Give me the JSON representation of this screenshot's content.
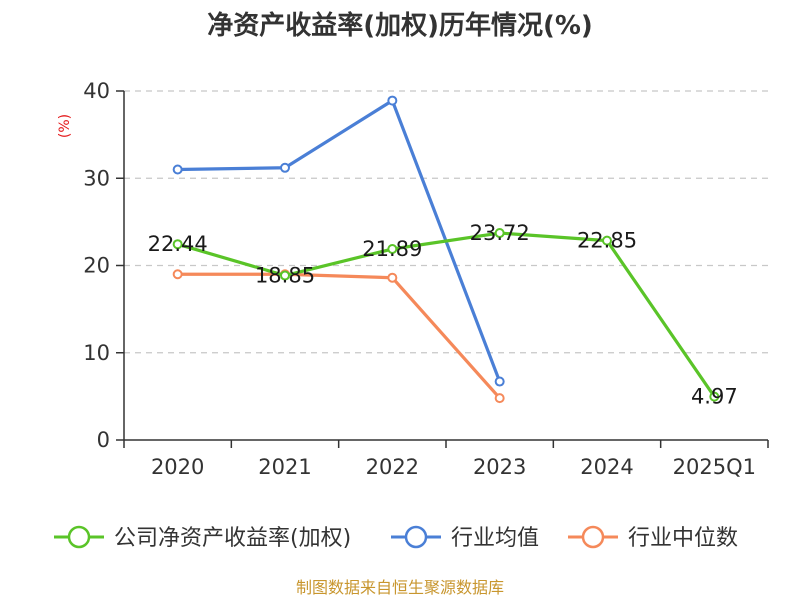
{
  "chart_data": {
    "type": "line",
    "title": "净资产收益率(加权)历年情况(%)",
    "ylabel": "(%)",
    "xlabel": "",
    "categories": [
      "2020",
      "2021",
      "2022",
      "2023",
      "2024",
      "2025Q1"
    ],
    "ylim": [
      0,
      40
    ],
    "yticks": [
      0,
      10,
      20,
      30,
      40
    ],
    "grid": true,
    "legend_position": "bottom",
    "series": [
      {
        "name": "公司净资产收益率(加权)",
        "color": "#5ac428",
        "values": [
          22.44,
          18.85,
          21.89,
          23.72,
          22.85,
          4.97
        ],
        "labels": [
          "22.44",
          "18.85",
          "21.89",
          "23.72",
          "22.85",
          "4.97"
        ]
      },
      {
        "name": "行业均值",
        "color": "#4a7fd6",
        "values": [
          31.0,
          31.2,
          38.9,
          6.7,
          null,
          null
        ],
        "labels": []
      },
      {
        "name": "行业中位数",
        "color": "#f5895a",
        "values": [
          19.0,
          19.0,
          18.6,
          4.8,
          null,
          null
        ],
        "labels": []
      }
    ]
  },
  "footer": {
    "source": "制图数据来自恒生聚源数据库"
  }
}
